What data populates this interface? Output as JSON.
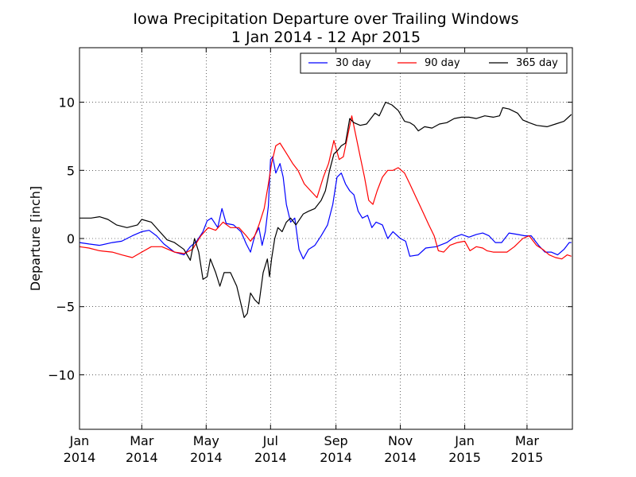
{
  "chart_data": {
    "type": "line",
    "title": "Iowa Precipitation Departure over Trailing Windows",
    "subtitle": "1 Jan 2014 - 12 Apr 2015",
    "xlabel": "",
    "ylabel": "Departure [inch]",
    "ylim": [
      -14,
      14
    ],
    "xlim": [
      "2014-01-01",
      "2015-04-12"
    ],
    "y_ticks": [
      {
        "value": -10,
        "label": "−10"
      },
      {
        "value": -5,
        "label": "−5"
      },
      {
        "value": 0,
        "label": "0"
      },
      {
        "value": 5,
        "label": "5"
      },
      {
        "value": 10,
        "label": "10"
      }
    ],
    "x_ticks": [
      {
        "date": "2014-01-01",
        "label1": "Jan",
        "label2": "2014"
      },
      {
        "date": "2014-03-01",
        "label1": "Mar",
        "label2": "2014"
      },
      {
        "date": "2014-05-01",
        "label1": "May",
        "label2": "2014"
      },
      {
        "date": "2014-07-01",
        "label1": "Jul",
        "label2": "2014"
      },
      {
        "date": "2014-09-01",
        "label1": "Sep",
        "label2": "2014"
      },
      {
        "date": "2014-11-01",
        "label1": "Nov",
        "label2": "2014"
      },
      {
        "date": "2015-01-01",
        "label1": "Jan",
        "label2": "2015"
      },
      {
        "date": "2015-03-01",
        "label1": "Mar",
        "label2": "2015"
      }
    ],
    "grid": true,
    "legend_position": "top-right",
    "series": [
      {
        "name": "30 day",
        "color": "#0000ff",
        "points": [
          [
            "2014-01-01",
            -0.3
          ],
          [
            "2014-01-10",
            -0.4
          ],
          [
            "2014-01-20",
            -0.5
          ],
          [
            "2014-02-01",
            -0.3
          ],
          [
            "2014-02-10",
            -0.2
          ],
          [
            "2014-02-20",
            0.2
          ],
          [
            "2014-03-01",
            0.5
          ],
          [
            "2014-03-08",
            0.6
          ],
          [
            "2014-03-15",
            0.2
          ],
          [
            "2014-03-22",
            -0.4
          ],
          [
            "2014-04-01",
            -1.0
          ],
          [
            "2014-04-10",
            -1.2
          ],
          [
            "2014-04-16",
            -0.6
          ],
          [
            "2014-04-22",
            -0.2
          ],
          [
            "2014-04-28",
            0.5
          ],
          [
            "2014-05-02",
            1.3
          ],
          [
            "2014-05-06",
            1.5
          ],
          [
            "2014-05-12",
            0.8
          ],
          [
            "2014-05-16",
            2.2
          ],
          [
            "2014-05-20",
            1.1
          ],
          [
            "2014-05-27",
            1.0
          ],
          [
            "2014-06-03",
            0.5
          ],
          [
            "2014-06-08",
            -0.4
          ],
          [
            "2014-06-12",
            -1.0
          ],
          [
            "2014-06-16",
            0.2
          ],
          [
            "2014-06-20",
            0.8
          ],
          [
            "2014-06-23",
            -0.5
          ],
          [
            "2014-06-26",
            0.5
          ],
          [
            "2014-06-29",
            2.4
          ],
          [
            "2014-07-01",
            5.8
          ],
          [
            "2014-07-03",
            6.0
          ],
          [
            "2014-07-06",
            4.8
          ],
          [
            "2014-07-10",
            5.5
          ],
          [
            "2014-07-13",
            4.5
          ],
          [
            "2014-07-16",
            2.5
          ],
          [
            "2014-07-20",
            1.2
          ],
          [
            "2014-07-24",
            1.5
          ],
          [
            "2014-07-28",
            -0.8
          ],
          [
            "2014-08-01",
            -1.5
          ],
          [
            "2014-08-06",
            -0.8
          ],
          [
            "2014-08-12",
            -0.5
          ],
          [
            "2014-08-18",
            0.2
          ],
          [
            "2014-08-24",
            1.0
          ],
          [
            "2014-08-29",
            2.5
          ],
          [
            "2014-09-02",
            4.5
          ],
          [
            "2014-09-06",
            4.8
          ],
          [
            "2014-09-10",
            4.0
          ],
          [
            "2014-09-14",
            3.5
          ],
          [
            "2014-09-18",
            3.2
          ],
          [
            "2014-09-22",
            2.0
          ],
          [
            "2014-09-26",
            1.5
          ],
          [
            "2014-10-01",
            1.7
          ],
          [
            "2014-10-05",
            0.8
          ],
          [
            "2014-10-09",
            1.2
          ],
          [
            "2014-10-15",
            1.0
          ],
          [
            "2014-10-20",
            0.0
          ],
          [
            "2014-10-25",
            0.5
          ],
          [
            "2014-11-01",
            0.0
          ],
          [
            "2014-11-06",
            -0.2
          ],
          [
            "2014-11-10",
            -1.3
          ],
          [
            "2014-11-18",
            -1.2
          ],
          [
            "2014-11-25",
            -0.7
          ],
          [
            "2014-12-05",
            -0.6
          ],
          [
            "2014-12-15",
            -0.3
          ],
          [
            "2014-12-22",
            0.1
          ],
          [
            "2014-12-29",
            0.3
          ],
          [
            "2015-01-05",
            0.1
          ],
          [
            "2015-01-12",
            0.3
          ],
          [
            "2015-01-18",
            0.4
          ],
          [
            "2015-01-24",
            0.2
          ],
          [
            "2015-01-30",
            -0.3
          ],
          [
            "2015-02-05",
            -0.3
          ],
          [
            "2015-02-12",
            0.4
          ],
          [
            "2015-02-20",
            0.3
          ],
          [
            "2015-02-27",
            0.2
          ],
          [
            "2015-03-05",
            0.2
          ],
          [
            "2015-03-12",
            -0.5
          ],
          [
            "2015-03-18",
            -1.0
          ],
          [
            "2015-03-24",
            -1.0
          ],
          [
            "2015-03-30",
            -1.2
          ],
          [
            "2015-04-05",
            -0.8
          ],
          [
            "2015-04-10",
            -0.3
          ],
          [
            "2015-04-12",
            -0.3
          ]
        ]
      },
      {
        "name": "90 day",
        "color": "#ff0000",
        "points": [
          [
            "2014-01-01",
            -0.6
          ],
          [
            "2014-01-10",
            -0.7
          ],
          [
            "2014-01-20",
            -0.9
          ],
          [
            "2014-02-01",
            -1.0
          ],
          [
            "2014-02-10",
            -1.2
          ],
          [
            "2014-02-20",
            -1.4
          ],
          [
            "2014-03-01",
            -1.0
          ],
          [
            "2014-03-10",
            -0.6
          ],
          [
            "2014-03-20",
            -0.6
          ],
          [
            "2014-04-01",
            -1.0
          ],
          [
            "2014-04-10",
            -1.1
          ],
          [
            "2014-04-18",
            -0.8
          ],
          [
            "2014-04-26",
            0.2
          ],
          [
            "2014-05-03",
            0.8
          ],
          [
            "2014-05-10",
            0.6
          ],
          [
            "2014-05-17",
            1.2
          ],
          [
            "2014-05-24",
            0.8
          ],
          [
            "2014-06-01",
            0.8
          ],
          [
            "2014-06-08",
            0.2
          ],
          [
            "2014-06-12",
            -0.2
          ],
          [
            "2014-06-16",
            0.2
          ],
          [
            "2014-06-20",
            1.0
          ],
          [
            "2014-06-25",
            2.2
          ],
          [
            "2014-06-29",
            4.0
          ],
          [
            "2014-07-02",
            5.5
          ],
          [
            "2014-07-06",
            6.8
          ],
          [
            "2014-07-10",
            7.0
          ],
          [
            "2014-07-14",
            6.5
          ],
          [
            "2014-07-18",
            6.0
          ],
          [
            "2014-07-22",
            5.5
          ],
          [
            "2014-07-27",
            5.0
          ],
          [
            "2014-08-02",
            4.0
          ],
          [
            "2014-08-08",
            3.5
          ],
          [
            "2014-08-14",
            3.0
          ],
          [
            "2014-08-20",
            4.5
          ],
          [
            "2014-08-25",
            5.5
          ],
          [
            "2014-08-30",
            7.2
          ],
          [
            "2014-09-04",
            5.8
          ],
          [
            "2014-09-08",
            6.0
          ],
          [
            "2014-09-12",
            7.5
          ],
          [
            "2014-09-16",
            9.0
          ],
          [
            "2014-09-20",
            7.5
          ],
          [
            "2014-09-24",
            6.0
          ],
          [
            "2014-09-28",
            4.5
          ],
          [
            "2014-10-02",
            2.8
          ],
          [
            "2014-10-06",
            2.5
          ],
          [
            "2014-10-10",
            3.5
          ],
          [
            "2014-10-15",
            4.5
          ],
          [
            "2014-10-20",
            5.0
          ],
          [
            "2014-10-25",
            5.0
          ],
          [
            "2014-10-30",
            5.2
          ],
          [
            "2014-11-05",
            4.8
          ],
          [
            "2014-11-10",
            4.0
          ],
          [
            "2014-11-16",
            3.0
          ],
          [
            "2014-11-22",
            2.0
          ],
          [
            "2014-11-28",
            1.0
          ],
          [
            "2014-12-03",
            0.2
          ],
          [
            "2014-12-07",
            -0.9
          ],
          [
            "2014-12-12",
            -1.0
          ],
          [
            "2014-12-18",
            -0.5
          ],
          [
            "2014-12-25",
            -0.3
          ],
          [
            "2015-01-01",
            -0.2
          ],
          [
            "2015-01-06",
            -0.9
          ],
          [
            "2015-01-12",
            -0.6
          ],
          [
            "2015-01-18",
            -0.7
          ],
          [
            "2015-01-22",
            -0.9
          ],
          [
            "2015-01-28",
            -1.0
          ],
          [
            "2015-02-03",
            -1.0
          ],
          [
            "2015-02-10",
            -1.0
          ],
          [
            "2015-02-17",
            -0.6
          ],
          [
            "2015-02-25",
            0.0
          ],
          [
            "2015-03-03",
            0.2
          ],
          [
            "2015-03-10",
            -0.5
          ],
          [
            "2015-03-16",
            -0.8
          ],
          [
            "2015-03-22",
            -1.2
          ],
          [
            "2015-03-28",
            -1.4
          ],
          [
            "2015-04-03",
            -1.5
          ],
          [
            "2015-04-08",
            -1.2
          ],
          [
            "2015-04-12",
            -1.3
          ]
        ]
      },
      {
        "name": "365 day",
        "color": "#000000",
        "points": [
          [
            "2014-01-01",
            1.5
          ],
          [
            "2014-01-12",
            1.5
          ],
          [
            "2014-01-20",
            1.6
          ],
          [
            "2014-01-28",
            1.4
          ],
          [
            "2014-02-05",
            1.0
          ],
          [
            "2014-02-15",
            0.8
          ],
          [
            "2014-02-25",
            1.0
          ],
          [
            "2014-03-01",
            1.4
          ],
          [
            "2014-03-10",
            1.2
          ],
          [
            "2014-03-18",
            0.5
          ],
          [
            "2014-03-25",
            -0.1
          ],
          [
            "2014-04-01",
            -0.3
          ],
          [
            "2014-04-10",
            -0.8
          ],
          [
            "2014-04-16",
            -1.6
          ],
          [
            "2014-04-20",
            0.0
          ],
          [
            "2014-04-24",
            -1.0
          ],
          [
            "2014-04-28",
            -3.0
          ],
          [
            "2014-05-02",
            -2.8
          ],
          [
            "2014-05-05",
            -1.5
          ],
          [
            "2014-05-10",
            -2.5
          ],
          [
            "2014-05-14",
            -3.5
          ],
          [
            "2014-05-18",
            -2.5
          ],
          [
            "2014-05-24",
            -2.5
          ],
          [
            "2014-05-30",
            -3.5
          ],
          [
            "2014-06-03",
            -4.8
          ],
          [
            "2014-06-06",
            -5.8
          ],
          [
            "2014-06-09",
            -5.5
          ],
          [
            "2014-06-12",
            -4.0
          ],
          [
            "2014-06-16",
            -4.5
          ],
          [
            "2014-06-20",
            -4.8
          ],
          [
            "2014-06-24",
            -2.5
          ],
          [
            "2014-06-28",
            -1.5
          ],
          [
            "2014-06-30",
            -2.8
          ],
          [
            "2014-07-02",
            -1.5
          ],
          [
            "2014-07-05",
            0.0
          ],
          [
            "2014-07-08",
            0.8
          ],
          [
            "2014-07-12",
            0.5
          ],
          [
            "2014-07-16",
            1.2
          ],
          [
            "2014-07-20",
            1.5
          ],
          [
            "2014-07-25",
            1.0
          ],
          [
            "2014-08-01",
            1.8
          ],
          [
            "2014-08-06",
            2.0
          ],
          [
            "2014-08-12",
            2.2
          ],
          [
            "2014-08-18",
            2.8
          ],
          [
            "2014-08-22",
            3.5
          ],
          [
            "2014-08-26",
            5.0
          ],
          [
            "2014-08-30",
            6.2
          ],
          [
            "2014-09-03",
            6.5
          ],
          [
            "2014-09-06",
            6.8
          ],
          [
            "2014-09-10",
            7.0
          ],
          [
            "2014-09-14",
            8.8
          ],
          [
            "2014-09-18",
            8.5
          ],
          [
            "2014-09-24",
            8.3
          ],
          [
            "2014-09-30",
            8.4
          ],
          [
            "2014-10-04",
            8.8
          ],
          [
            "2014-10-08",
            9.2
          ],
          [
            "2014-10-12",
            9.0
          ],
          [
            "2014-10-18",
            10.0
          ],
          [
            "2014-10-24",
            9.8
          ],
          [
            "2014-10-30",
            9.4
          ],
          [
            "2014-11-05",
            8.6
          ],
          [
            "2014-11-10",
            8.5
          ],
          [
            "2014-11-14",
            8.3
          ],
          [
            "2014-11-18",
            7.9
          ],
          [
            "2014-11-24",
            8.2
          ],
          [
            "2014-12-01",
            8.1
          ],
          [
            "2014-12-08",
            8.4
          ],
          [
            "2014-12-15",
            8.5
          ],
          [
            "2014-12-22",
            8.8
          ],
          [
            "2014-12-29",
            8.9
          ],
          [
            "2015-01-05",
            8.9
          ],
          [
            "2015-01-12",
            8.8
          ],
          [
            "2015-01-20",
            9.0
          ],
          [
            "2015-01-28",
            8.9
          ],
          [
            "2015-02-03",
            9.0
          ],
          [
            "2015-02-06",
            9.6
          ],
          [
            "2015-02-12",
            9.5
          ],
          [
            "2015-02-20",
            9.2
          ],
          [
            "2015-02-25",
            8.7
          ],
          [
            "2015-03-03",
            8.5
          ],
          [
            "2015-03-10",
            8.3
          ],
          [
            "2015-03-20",
            8.2
          ],
          [
            "2015-03-28",
            8.4
          ],
          [
            "2015-04-05",
            8.6
          ],
          [
            "2015-04-12",
            9.1
          ]
        ]
      }
    ]
  }
}
